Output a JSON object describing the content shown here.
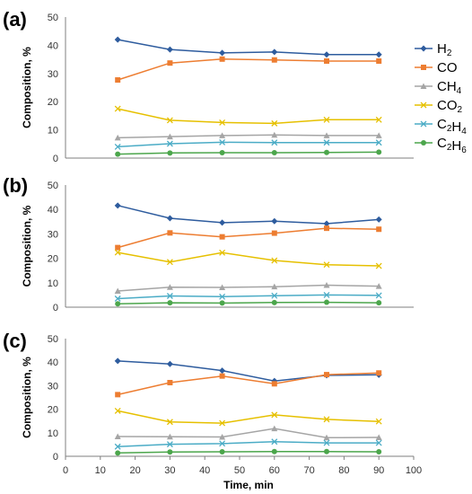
{
  "chart_data": [
    {
      "type": "line",
      "panel": "(a)",
      "ylabel": "Composition, %",
      "xlabel": "",
      "x": [
        15,
        30,
        45,
        60,
        75,
        90
      ],
      "xlim": [
        0,
        100
      ],
      "ylim": [
        0,
        50
      ],
      "ytick_step": 10,
      "series": [
        {
          "name": "H2",
          "label_main": "H",
          "label_sub": "2",
          "color": "#2E5C9E",
          "marker": "diamond",
          "values": [
            42.0,
            38.5,
            37.3,
            37.6,
            36.7,
            36.7
          ]
        },
        {
          "name": "CO",
          "label_main": "CO",
          "label_sub": "",
          "color": "#ED7D31",
          "marker": "square",
          "values": [
            27.7,
            33.7,
            35.1,
            34.8,
            34.4,
            34.4
          ]
        },
        {
          "name": "CH4",
          "label_main": "CH",
          "label_sub": "4",
          "color": "#A5A5A5",
          "marker": "triangle",
          "values": [
            7.2,
            7.6,
            8.0,
            8.2,
            8.0,
            8.0
          ]
        },
        {
          "name": "CO2",
          "label_main": "CO",
          "label_sub": "2",
          "color": "#E6C000",
          "marker": "x",
          "values": [
            17.5,
            13.4,
            12.6,
            12.3,
            13.6,
            13.6
          ]
        },
        {
          "name": "C2H4",
          "label_main": "C",
          "label_sub": "2",
          "label_main2": "H",
          "label_sub2": "4",
          "color": "#4BACC6",
          "marker": "x",
          "values": [
            4.0,
            5.1,
            5.6,
            5.5,
            5.5,
            5.5
          ]
        },
        {
          "name": "C2H6",
          "label_main": "C",
          "label_sub": "2",
          "label_main2": "H",
          "label_sub2": "6",
          "color": "#4CA64C",
          "marker": "circle",
          "values": [
            1.4,
            1.8,
            1.9,
            1.9,
            2.0,
            2.1
          ]
        }
      ],
      "legend": "right"
    },
    {
      "type": "line",
      "panel": "(b)",
      "ylabel": "Composition, %",
      "xlabel": "",
      "x": [
        15,
        30,
        45,
        60,
        75,
        90
      ],
      "xlim": [
        0,
        100
      ],
      "ylim": [
        0,
        50
      ],
      "ytick_step": 10,
      "series": [
        {
          "name": "H2",
          "color": "#2E5C9E",
          "marker": "diamond",
          "values": [
            41.6,
            36.4,
            34.6,
            35.2,
            34.2,
            35.9
          ]
        },
        {
          "name": "CO",
          "color": "#ED7D31",
          "marker": "square",
          "values": [
            24.4,
            30.4,
            28.8,
            30.3,
            32.3,
            31.9
          ]
        },
        {
          "name": "CH4",
          "color": "#A5A5A5",
          "marker": "triangle",
          "values": [
            6.6,
            8.2,
            8.1,
            8.4,
            9.0,
            8.6
          ]
        },
        {
          "name": "CO2",
          "color": "#E6C000",
          "marker": "x",
          "values": [
            22.4,
            18.5,
            22.3,
            19.1,
            17.4,
            16.9
          ]
        },
        {
          "name": "C2H4",
          "color": "#4BACC6",
          "marker": "x",
          "values": [
            3.5,
            4.6,
            4.3,
            4.7,
            5.0,
            4.8
          ]
        },
        {
          "name": "C2H6",
          "color": "#4CA64C",
          "marker": "circle",
          "values": [
            1.4,
            1.8,
            1.7,
            1.9,
            2.0,
            1.8
          ]
        }
      ]
    },
    {
      "type": "line",
      "panel": "(c)",
      "ylabel": "Composition, %",
      "xlabel": "Time, min",
      "x": [
        15,
        30,
        45,
        60,
        75,
        90
      ],
      "xlim": [
        0,
        100
      ],
      "xtick_step": 10,
      "ylim": [
        0,
        50
      ],
      "ytick_step": 10,
      "series": [
        {
          "name": "H2",
          "color": "#2E5C9E",
          "marker": "diamond",
          "values": [
            40.5,
            39.2,
            36.4,
            32.0,
            34.4,
            34.6
          ]
        },
        {
          "name": "CO",
          "color": "#ED7D31",
          "marker": "square",
          "values": [
            26.2,
            31.3,
            34.1,
            30.8,
            34.7,
            35.4
          ]
        },
        {
          "name": "CH4",
          "color": "#A5A5A5",
          "marker": "triangle",
          "values": [
            8.4,
            8.3,
            8.2,
            11.8,
            7.9,
            8.0
          ]
        },
        {
          "name": "CO2",
          "color": "#E6C000",
          "marker": "x",
          "values": [
            19.3,
            14.6,
            14.1,
            17.6,
            15.7,
            14.8
          ]
        },
        {
          "name": "C2H4",
          "color": "#4BACC6",
          "marker": "x",
          "values": [
            4.1,
            5.1,
            5.4,
            6.2,
            5.7,
            5.7
          ]
        },
        {
          "name": "C2H6",
          "color": "#4CA64C",
          "marker": "circle",
          "values": [
            1.4,
            1.8,
            1.9,
            2.0,
            2.0,
            1.9
          ]
        }
      ]
    }
  ]
}
